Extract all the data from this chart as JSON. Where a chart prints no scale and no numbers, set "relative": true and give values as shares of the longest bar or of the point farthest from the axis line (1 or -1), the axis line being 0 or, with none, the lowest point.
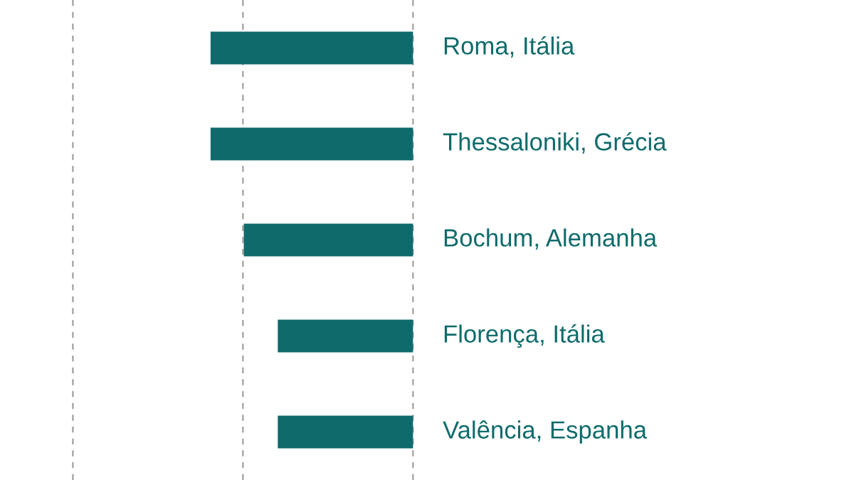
{
  "chart_data": {
    "type": "bar",
    "orientation": "horizontal",
    "relative": true,
    "categories": [
      "Roma, Itália",
      "Thessaloniki, Grécia",
      "Bochum, Alemanha",
      "Florença, Itália",
      "Valência, Espanha"
    ],
    "values": [
      -1,
      -1,
      -0.836,
      -0.668,
      -0.668
    ],
    "color": "#0f6b6b",
    "ref_lines": [
      {
        "axis": "x",
        "value": 0,
        "color": "#999999",
        "line_style": "dashed"
      },
      {
        "axis": "x",
        "value": -0.84,
        "color": "#999999",
        "line_style": "dashed"
      },
      {
        "axis": "x",
        "value": -1.68,
        "color": "#999999",
        "line_style": "dashed"
      }
    ]
  }
}
